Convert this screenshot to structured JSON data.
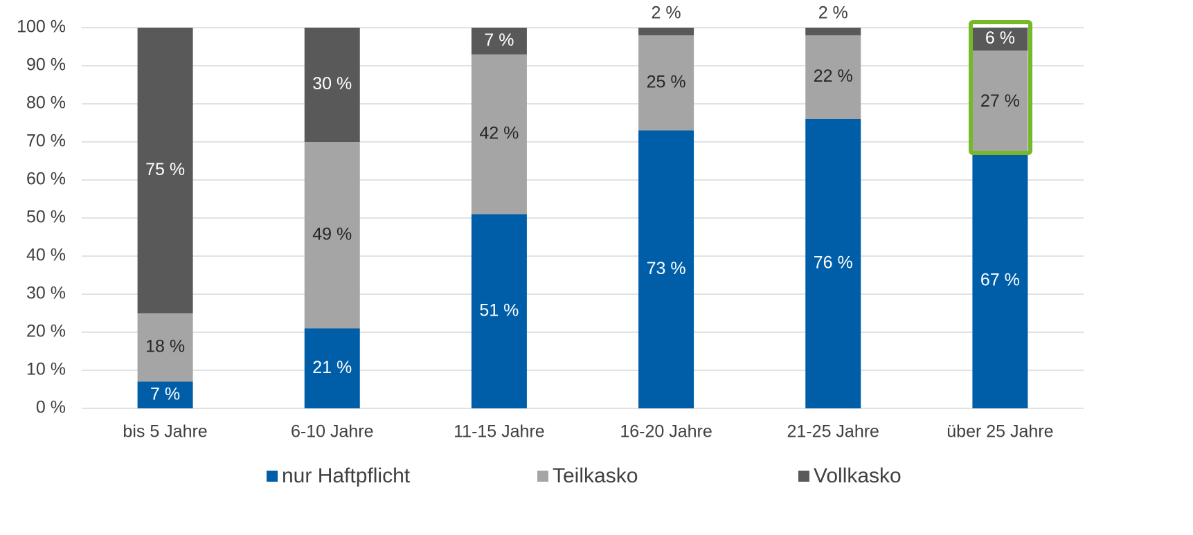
{
  "chart_data": {
    "type": "stacked_bar",
    "categories": [
      "bis 5 Jahre",
      "6-10 Jahre",
      "11-15 Jahre",
      "16-20 Jahre",
      "21-25 Jahre",
      "über 25 Jahre"
    ],
    "series": [
      {
        "name": "nur Haftpflicht",
        "color": "#005ea8",
        "values": [
          7,
          21,
          51,
          73,
          76,
          67
        ],
        "value_labels": [
          "7 %",
          "21 %",
          "51 %",
          "73 %",
          "76 %",
          "67 %"
        ]
      },
      {
        "name": "Teilkasko",
        "color": "#a5a5a5",
        "values": [
          18,
          49,
          42,
          25,
          22,
          27
        ],
        "value_labels": [
          "18 %",
          "49 %",
          "42 %",
          "25 %",
          "22 %",
          "27 %"
        ]
      },
      {
        "name": "Vollkasko",
        "color": "#595959",
        "values": [
          75,
          30,
          7,
          2,
          2,
          6
        ],
        "value_labels": [
          "75 %",
          "30 %",
          "7 %",
          "2 %",
          "2 %",
          "6 %"
        ]
      }
    ],
    "ylim": [
      0,
      100
    ],
    "yticks": [
      {
        "value": 0,
        "label": "0 %"
      },
      {
        "value": 10,
        "label": "10 %"
      },
      {
        "value": 20,
        "label": "20 %"
      },
      {
        "value": 30,
        "label": "30 %"
      },
      {
        "value": 40,
        "label": "40 %"
      },
      {
        "value": 50,
        "label": "50 %"
      },
      {
        "value": 60,
        "label": "60 %"
      },
      {
        "value": 70,
        "label": "70 %"
      },
      {
        "value": 80,
        "label": "80 %"
      },
      {
        "value": 90,
        "label": "90 %"
      },
      {
        "value": 100,
        "label": "100 %"
      }
    ],
    "grid": true,
    "legend": "bottom"
  }
}
